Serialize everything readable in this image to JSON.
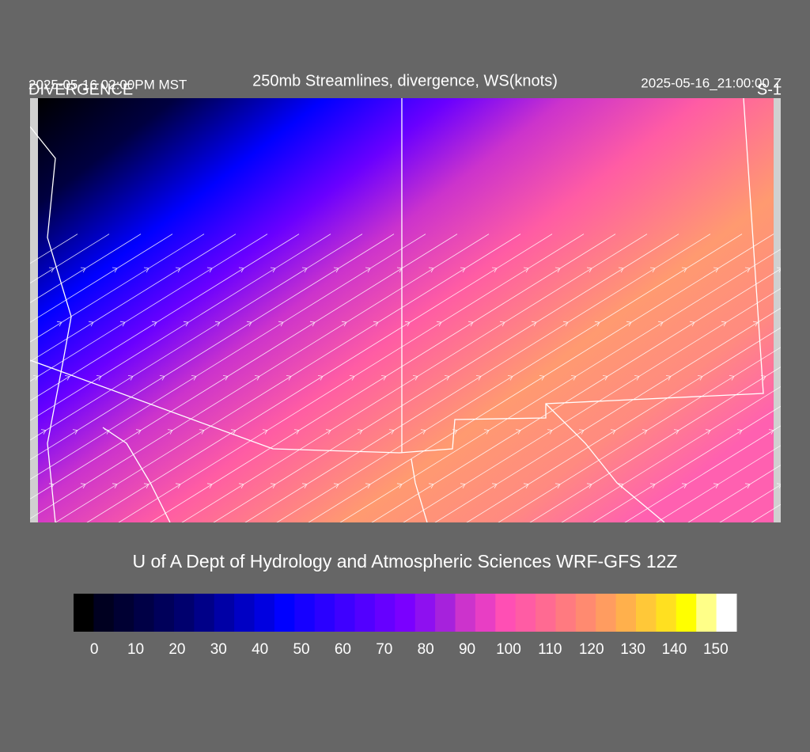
{
  "header": {
    "title": "250mb Streamlines, divergence, WS(knots)",
    "label_left": "DIVERGENCE",
    "time_local": "2025-05-16 02:00PM MST",
    "time_utc": "2025-05-16_21:00:00 Z",
    "label_right": "S-1"
  },
  "footer": {
    "credit": "U of A Dept of Hydrology and Atmospheric Sciences WRF-GFS 12Z"
  },
  "colorbar": {
    "range": [
      -5,
      155
    ],
    "colors": [
      "#000000",
      "#000020",
      "#000033",
      "#000046",
      "#00005a",
      "#00006e",
      "#000088",
      "#0000a6",
      "#0000c4",
      "#0000e0",
      "#0000ff",
      "#1600ff",
      "#2a00ff",
      "#3e00ff",
      "#5200ff",
      "#6600ff",
      "#7a00ff",
      "#8e10f0",
      "#a622dc",
      "#cc33cc",
      "#e83ec4",
      "#ff4fb4",
      "#ff5ca4",
      "#ff6a92",
      "#ff7a80",
      "#ff8a70",
      "#ff9c60",
      "#ffb04c",
      "#ffc838",
      "#ffe020",
      "#ffff00",
      "#ffff88",
      "#ffffff"
    ],
    "ticks": [
      0,
      10,
      20,
      30,
      40,
      50,
      60,
      70,
      80,
      90,
      100,
      110,
      120,
      130,
      140,
      150
    ]
  }
}
